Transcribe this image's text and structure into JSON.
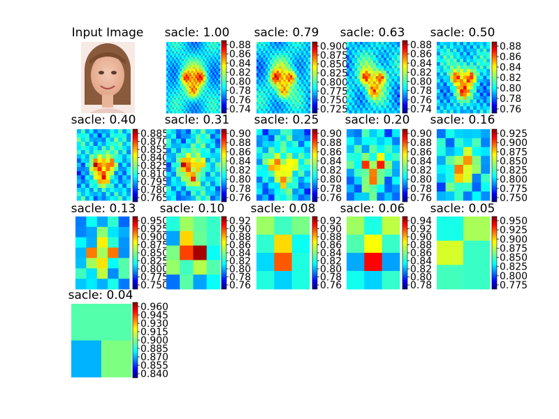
{
  "figure": {
    "background": "#ffffff",
    "colormap": "jet",
    "input_title": "Input Image"
  },
  "chart_data": [
    {
      "type": "heatmap",
      "title": "sacle: 1.00",
      "colorbar_ticks": [
        "0.88",
        "0.86",
        "0.84",
        "0.82",
        "0.80",
        "0.78",
        "0.76",
        "0.74"
      ]
    },
    {
      "type": "heatmap",
      "title": "sacle: 0.79",
      "colorbar_ticks": [
        "0.900",
        "0.875",
        "0.850",
        "0.825",
        "0.800",
        "0.775",
        "0.750",
        "0.725"
      ]
    },
    {
      "type": "heatmap",
      "title": "sacle: 0.63",
      "colorbar_ticks": [
        "0.88",
        "0.86",
        "0.84",
        "0.82",
        "0.80",
        "0.78",
        "0.76",
        "0.74"
      ]
    },
    {
      "type": "heatmap",
      "title": "sacle: 0.50",
      "colorbar_ticks": [
        "0.88",
        "0.86",
        "0.84",
        "0.82",
        "0.80",
        "0.78",
        "0.76"
      ]
    },
    {
      "type": "heatmap",
      "title": "sacle: 0.40",
      "colorbar_ticks": [
        "0.885",
        "0.870",
        "0.855",
        "0.840",
        "0.825",
        "0.810",
        "0.795",
        "0.780",
        "0.765"
      ]
    },
    {
      "type": "heatmap",
      "title": "sacle: 0.31",
      "colorbar_ticks": [
        "0.90",
        "0.88",
        "0.86",
        "0.84",
        "0.82",
        "0.80",
        "0.78",
        "0.76"
      ]
    },
    {
      "type": "heatmap",
      "title": "sacle: 0.25",
      "colorbar_ticks": [
        "0.90",
        "0.88",
        "0.86",
        "0.84",
        "0.82",
        "0.80",
        "0.78",
        "0.76"
      ]
    },
    {
      "type": "heatmap",
      "title": "sacle: 0.20",
      "colorbar_ticks": [
        "0.90",
        "0.88",
        "0.86",
        "0.84",
        "0.82",
        "0.80",
        "0.78",
        "0.76"
      ]
    },
    {
      "type": "heatmap",
      "title": "sacle: 0.16",
      "colorbar_ticks": [
        "0.925",
        "0.900",
        "0.875",
        "0.850",
        "0.825",
        "0.800",
        "0.775",
        "0.750"
      ]
    },
    {
      "type": "heatmap",
      "title": "sacle: 0.13",
      "colorbar_ticks": [
        "0.950",
        "0.925",
        "0.900",
        "0.875",
        "0.850",
        "0.825",
        "0.800",
        "0.775",
        "0.750"
      ]
    },
    {
      "type": "heatmap",
      "title": "sacle: 0.10",
      "colorbar_ticks": [
        "0.92",
        "0.90",
        "0.88",
        "0.86",
        "0.84",
        "0.82",
        "0.80",
        "0.78",
        "0.76"
      ]
    },
    {
      "type": "heatmap",
      "title": "sacle: 0.08",
      "colorbar_ticks": [
        "0.92",
        "0.90",
        "0.88",
        "0.86",
        "0.84",
        "0.82",
        "0.80",
        "0.78",
        "0.76"
      ]
    },
    {
      "type": "heatmap",
      "title": "sacle: 0.06",
      "colorbar_ticks": [
        "0.94",
        "0.92",
        "0.90",
        "0.88",
        "0.86",
        "0.84",
        "0.82",
        "0.80",
        "0.78"
      ]
    },
    {
      "type": "heatmap",
      "title": "sacle: 0.05",
      "colorbar_ticks": [
        "0.950",
        "0.925",
        "0.900",
        "0.875",
        "0.850",
        "0.825",
        "0.800",
        "0.775"
      ]
    },
    {
      "type": "heatmap",
      "title": "sacle: 0.04",
      "colorbar_ticks": [
        "0.960",
        "0.945",
        "0.930",
        "0.915",
        "0.900",
        "0.885",
        "0.870",
        "0.855",
        "0.840"
      ]
    }
  ]
}
